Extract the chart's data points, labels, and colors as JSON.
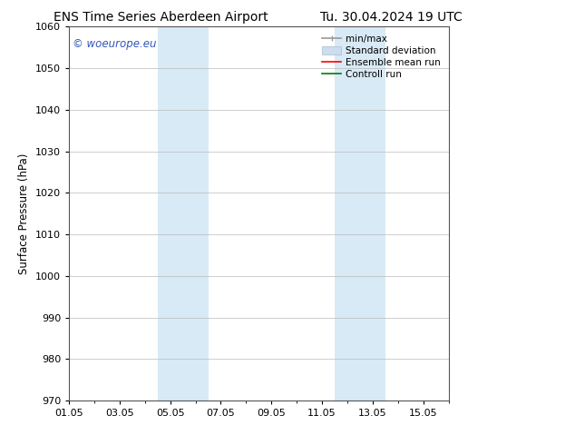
{
  "title_left": "ENS Time Series Aberdeen Airport",
  "title_right": "Tu. 30.04.2024 19 UTC",
  "ylabel": "Surface Pressure (hPa)",
  "ylim": [
    970,
    1060
  ],
  "yticks": [
    970,
    980,
    990,
    1000,
    1010,
    1020,
    1030,
    1040,
    1050,
    1060
  ],
  "xlim": [
    0,
    15
  ],
  "xtick_labels": [
    "01.05",
    "03.05",
    "05.05",
    "07.05",
    "09.05",
    "11.05",
    "13.05",
    "15.05"
  ],
  "xtick_positions": [
    0,
    2,
    4,
    6,
    8,
    10,
    12,
    14
  ],
  "shaded_bands": [
    {
      "xstart": 3.5,
      "xend": 5.5
    },
    {
      "xstart": 10.5,
      "xend": 12.5
    }
  ],
  "shade_color": "#d8eaf6",
  "watermark_text": "© woeurope.eu",
  "watermark_color": "#3355bb",
  "legend_items": [
    {
      "label": "min/max"
    },
    {
      "label": "Standard deviation"
    },
    {
      "label": "Ensemble mean run"
    },
    {
      "label": "Controll run"
    }
  ],
  "minmax_color": "#999999",
  "std_color": "#ccdded",
  "std_edge_color": "#aabbcc",
  "ens_color": "red",
  "ctrl_color": "green",
  "background_color": "#ffffff",
  "grid_color": "#bbbbbb",
  "spine_color": "#555555",
  "title_fontsize": 10,
  "label_fontsize": 8.5,
  "tick_fontsize": 8,
  "legend_fontsize": 7.5,
  "watermark_fontsize": 8.5
}
